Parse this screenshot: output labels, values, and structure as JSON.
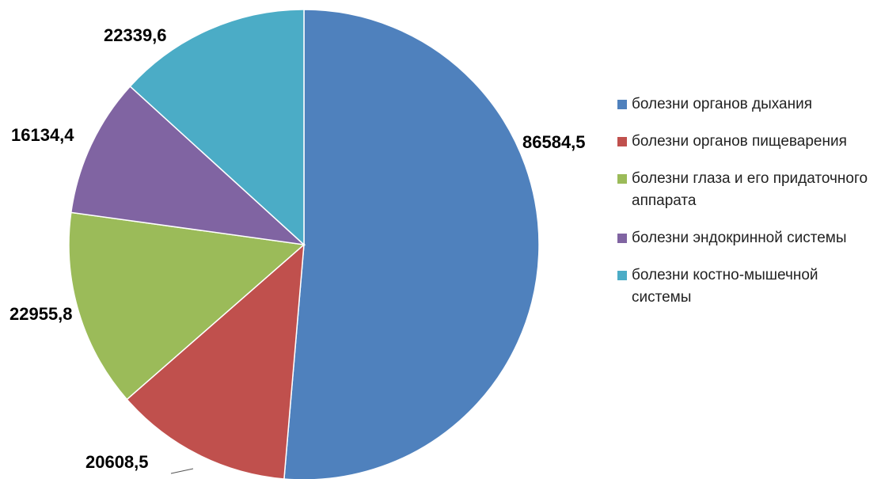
{
  "chart_data": {
    "type": "pie",
    "title": "",
    "labels": [
      "болезни органов дыхания",
      "болезни органов пищеварения",
      "болезни глаза и его придаточного аппарата",
      "болезни эндокринной системы",
      "болезни костно-мышечной системы"
    ],
    "values": [
      86584.5,
      20608.5,
      22955.8,
      16134.4,
      22339.6
    ],
    "data_labels": [
      "86584,5",
      "20608,5",
      "22955,8",
      "16134,4",
      "22339,6"
    ],
    "colors": [
      "#4F81BD",
      "#C0504D",
      "#9BBB59",
      "#8064A2",
      "#4BACC6"
    ],
    "start_angle": "12 o'clock",
    "direction": "clockwise",
    "legend_position": "right"
  }
}
